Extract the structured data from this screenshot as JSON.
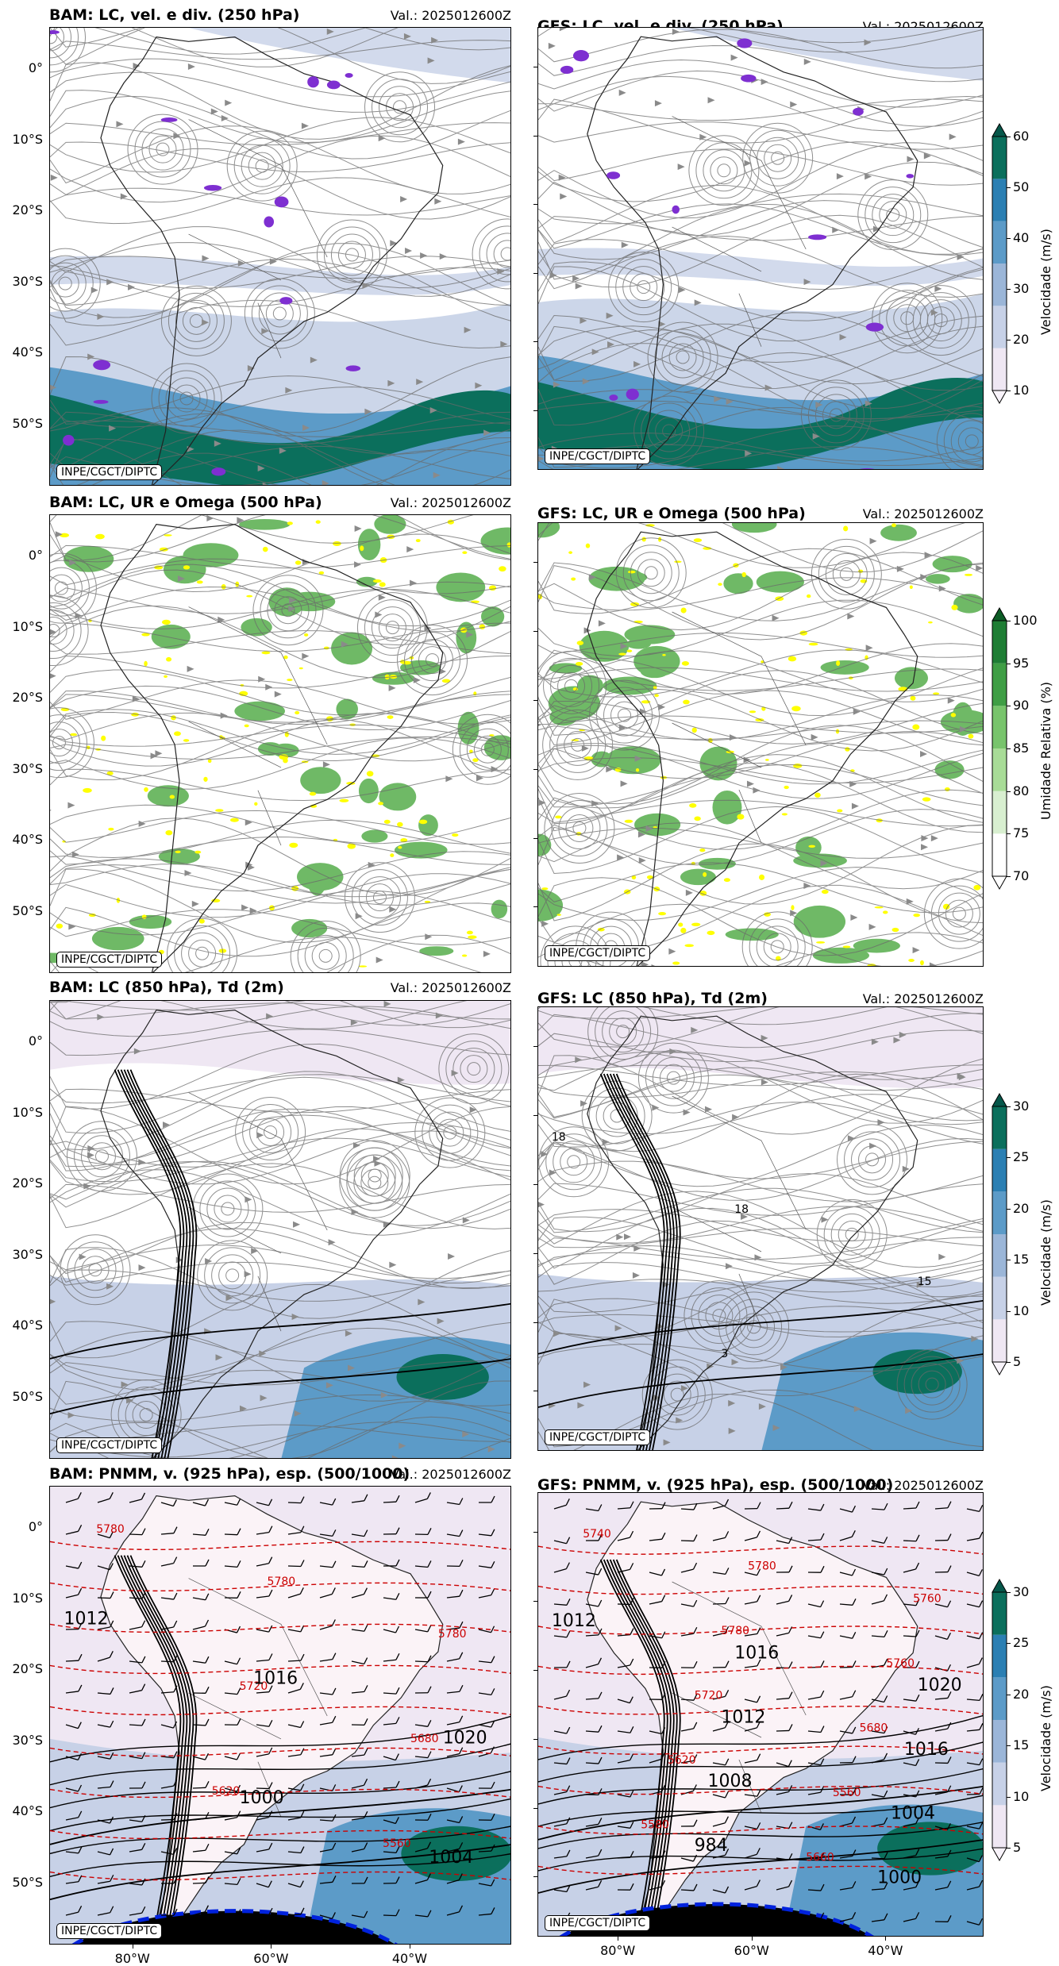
{
  "panels": [
    {
      "title": "BAM: LC, vel. e div. (250 hPa)",
      "valid": "Val.: 2025012600Z",
      "credit": "INPE/CGCT/DIPTC"
    },
    {
      "title": "GFS: LC, vel. e div. (250 hPa)",
      "valid": "Val.: 2025012600Z",
      "credit": "INPE/CGCT/DIPTC"
    },
    {
      "title": "BAM: LC, UR e Omega (500 hPa)",
      "valid": "Val.: 2025012600Z",
      "credit": "INPE/CGCT/DIPTC"
    },
    {
      "title": "GFS: LC, UR e Omega (500 hPa)",
      "valid": "Val.: 2025012600Z",
      "credit": "INPE/CGCT/DIPTC"
    },
    {
      "title": "BAM: LC (850 hPa), Td (2m)",
      "valid": "Val.: 2025012600Z",
      "credit": "INPE/CGCT/DIPTC"
    },
    {
      "title": "GFS: LC (850 hPa), Td (2m)",
      "valid": "Val.: 2025012600Z",
      "credit": "INPE/CGCT/DIPTC"
    },
    {
      "title": "BAM: PNMM, v. (925 hPa), esp. (500/1000)",
      "valid": "Val.: 2025012600Z",
      "credit": "INPE/CGCT/DIPTC"
    },
    {
      "title": "GFS: PNMM, v. (925 hPa), esp. (500/1000)",
      "valid": "Val.: 2025012600Z",
      "credit": "INPE/CGCT/DIPTC"
    }
  ],
  "lat_labels": [
    "0°",
    "10°S",
    "20°S",
    "30°S",
    "40°S",
    "50°S"
  ],
  "lon_labels": [
    "80°W",
    "60°W",
    "40°W"
  ],
  "colorbars": [
    {
      "label": "Velocidade (m/s)",
      "ticks": [
        "10",
        "20",
        "30",
        "40",
        "50",
        "60"
      ],
      "colors": [
        "#efe7f3",
        "#c7d1e7",
        "#9bb6d8",
        "#5c9bc8",
        "#2b7fb3",
        "#0b6f5c"
      ],
      "arrow_top": "#06574a",
      "arrow_bottom": "#f8f3fa"
    },
    {
      "label": "Umidade Relativa (%)",
      "ticks": [
        "70",
        "75",
        "80",
        "85",
        "90",
        "95",
        "100"
      ],
      "colors": [
        "#ffffff",
        "#d8efd0",
        "#a8dc97",
        "#78c46c",
        "#3f9e45",
        "#1e7d34"
      ],
      "arrow_top": "#0c5c25",
      "arrow_bottom": "#ffffff"
    },
    {
      "label": "Velocidade (m/s)",
      "ticks": [
        "5",
        "10",
        "15",
        "20",
        "25",
        "30"
      ],
      "colors": [
        "#efe7f3",
        "#c7d1e7",
        "#9bb6d8",
        "#5c9bc8",
        "#2b7fb3",
        "#0b6f5c"
      ],
      "arrow_top": "#06574a",
      "arrow_bottom": "#f8f3fa"
    },
    {
      "label": "Velocidade (m/s)",
      "ticks": [
        "5",
        "10",
        "15",
        "20",
        "25",
        "30"
      ],
      "colors": [
        "#efe7f3",
        "#c7d1e7",
        "#9bb6d8",
        "#5c9bc8",
        "#2b7fb3",
        "#0b6f5c"
      ],
      "arrow_top": "#06574a",
      "arrow_bottom": "#f8f3fa"
    }
  ],
  "contour_labels": {
    "thickness_bam": [
      "5780",
      "5780",
      "5780",
      "5720",
      "5680",
      "5620",
      "5560"
    ],
    "thickness_gfs": [
      "5740",
      "5780",
      "5760",
      "5780",
      "5760",
      "5720",
      "5680",
      "5620",
      "5560",
      "5580",
      "5660"
    ],
    "pressure_bam": [
      "1012",
      "1016",
      "1020",
      "1000",
      "1004"
    ],
    "pressure_gfs": [
      "1012",
      "1016",
      "1020",
      "1012",
      "1016",
      "1008",
      "1004",
      "984",
      "1000"
    ],
    "td_gfs": [
      "18",
      "18",
      "15",
      "3"
    ]
  },
  "colors": {
    "contour_red": "#cc0000",
    "stream": "#6a6a6a",
    "div": "#7e2fd1",
    "yellow": "#ffff00",
    "blue_low": "#0022dd"
  }
}
